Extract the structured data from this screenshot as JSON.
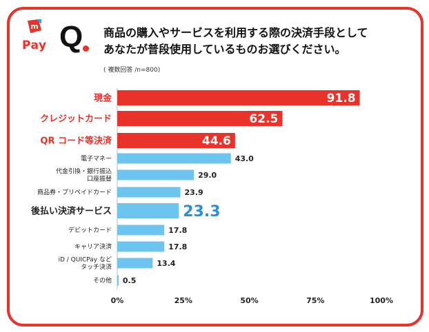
{
  "brand": {
    "logo_text": "Pay",
    "logo_mark": "m",
    "accent_color": "#e8322a"
  },
  "question": {
    "mark": "Q",
    "title_line1": "商品の購入やサービスを利用する際の決済手段として",
    "title_line2": "あなたが普段使用しているものお選びください。",
    "note": "( 複数回答 /n=800)"
  },
  "chart_data": {
    "type": "bar",
    "orientation": "horizontal",
    "title": "商品の購入やサービスを利用する際の決済手段としてあなたが普段使用しているものお選びください。",
    "xlim": [
      0,
      100
    ],
    "x_ticks": [
      "0%",
      "25%",
      "50%",
      "75%",
      "100%"
    ],
    "x_tick_values": [
      0,
      25,
      50,
      75,
      100
    ],
    "colors": {
      "highlight": "#e8322a",
      "normal": "#6cc4ef",
      "emphasis_text": "#2a8fd6"
    },
    "categories": [
      {
        "label": [
          "現金"
        ],
        "value": 91.8,
        "style": "highlight"
      },
      {
        "label": [
          "クレジットカード"
        ],
        "value": 62.5,
        "style": "highlight"
      },
      {
        "label": [
          "QR コード等決済"
        ],
        "value": 44.6,
        "style": "highlight"
      },
      {
        "label": [
          "電子マネー"
        ],
        "value": 43.0,
        "style": "normal"
      },
      {
        "label": [
          "代金引換・銀行振込",
          "口座振替"
        ],
        "value": 29.0,
        "style": "normal"
      },
      {
        "label": [
          "商品券・プリペイドカード"
        ],
        "value": 23.9,
        "style": "normal"
      },
      {
        "label": [
          "後払い決済サービス"
        ],
        "value": 23.3,
        "style": "emphasis"
      },
      {
        "label": [
          "デビットカード"
        ],
        "value": 17.8,
        "style": "normal"
      },
      {
        "label": [
          "キャリア決済"
        ],
        "value": 17.8,
        "style": "normal"
      },
      {
        "label": [
          "iD / QUICPay など",
          "タッチ決済"
        ],
        "value": 13.4,
        "style": "normal"
      },
      {
        "label": [
          "その他"
        ],
        "value": 0.5,
        "style": "normal"
      }
    ]
  }
}
